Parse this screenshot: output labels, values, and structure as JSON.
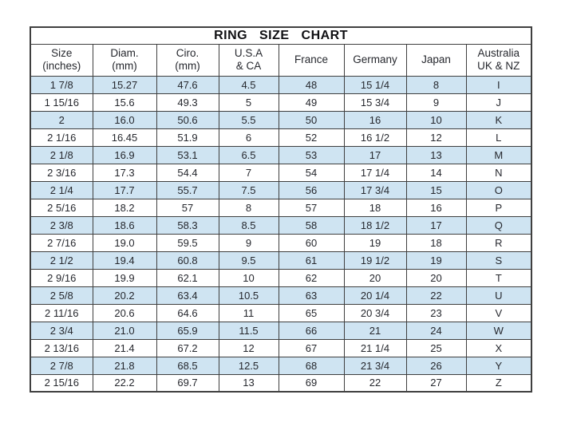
{
  "title": "RING SIZE CHART",
  "chart_data": {
    "type": "table",
    "title": "RING SIZE CHART",
    "columns": [
      {
        "label": "Size",
        "sub": "(inches)"
      },
      {
        "label": "Diam.",
        "sub": "(mm)"
      },
      {
        "label": "Ciro.",
        "sub": "(mm)"
      },
      {
        "label": "U.S.A",
        "sub": "& CA"
      },
      {
        "label": "France",
        "sub": ""
      },
      {
        "label": "Germany",
        "sub": ""
      },
      {
        "label": "Japan",
        "sub": ""
      },
      {
        "label": "Australia",
        "sub": "UK & NZ"
      }
    ],
    "rows": [
      [
        "1 7/8",
        "15.27",
        "47.6",
        "4.5",
        "48",
        "15 1/4",
        "8",
        "I"
      ],
      [
        "1 15/16",
        "15.6",
        "49.3",
        "5",
        "49",
        "15 3/4",
        "9",
        "J"
      ],
      [
        "2",
        "16.0",
        "50.6",
        "5.5",
        "50",
        "16",
        "10",
        "K"
      ],
      [
        "2 1/16",
        "16.45",
        "51.9",
        "6",
        "52",
        "16 1/2",
        "12",
        "L"
      ],
      [
        "2 1/8",
        "16.9",
        "53.1",
        "6.5",
        "53",
        "17",
        "13",
        "M"
      ],
      [
        "2 3/16",
        "17.3",
        "54.4",
        "7",
        "54",
        "17 1/4",
        "14",
        "N"
      ],
      [
        "2 1/4",
        "17.7",
        "55.7",
        "7.5",
        "56",
        "17 3/4",
        "15",
        "O"
      ],
      [
        "2 5/16",
        "18.2",
        "57",
        "8",
        "57",
        "18",
        "16",
        "P"
      ],
      [
        "2 3/8",
        "18.6",
        "58.3",
        "8.5",
        "58",
        "18 1/2",
        "17",
        "Q"
      ],
      [
        "2 7/16",
        "19.0",
        "59.5",
        "9",
        "60",
        "19",
        "18",
        "R"
      ],
      [
        "2 1/2",
        "19.4",
        "60.8",
        "9.5",
        "61",
        "19 1/2",
        "19",
        "S"
      ],
      [
        "2 9/16",
        "19.9",
        "62.1",
        "10",
        "62",
        "20",
        "20",
        "T"
      ],
      [
        "2 5/8",
        "20.2",
        "63.4",
        "10.5",
        "63",
        "20 1/4",
        "22",
        "U"
      ],
      [
        "2 11/16",
        "20.6",
        "64.6",
        "11",
        "65",
        "20 3/4",
        "23",
        "V"
      ],
      [
        "2 3/4",
        "21.0",
        "65.9",
        "11.5",
        "66",
        "21",
        "24",
        "W"
      ],
      [
        "2 13/16",
        "21.4",
        "67.2",
        "12",
        "67",
        "21 1/4",
        "25",
        "X"
      ],
      [
        "2 7/8",
        "21.8",
        "68.5",
        "12.5",
        "68",
        "21 3/4",
        "26",
        "Y"
      ],
      [
        "2 15/16",
        "22.2",
        "69.7",
        "13",
        "69",
        "22",
        "27",
        "Z"
      ]
    ],
    "layout": {
      "shaded_rows": "odd rows (1st, 3rd, ...) light blue",
      "grid": true
    }
  },
  "colors": {
    "row_shade": "#cfe4f2",
    "border": "#3f3f3f",
    "text": "#26282e",
    "background": "#ffffff"
  }
}
